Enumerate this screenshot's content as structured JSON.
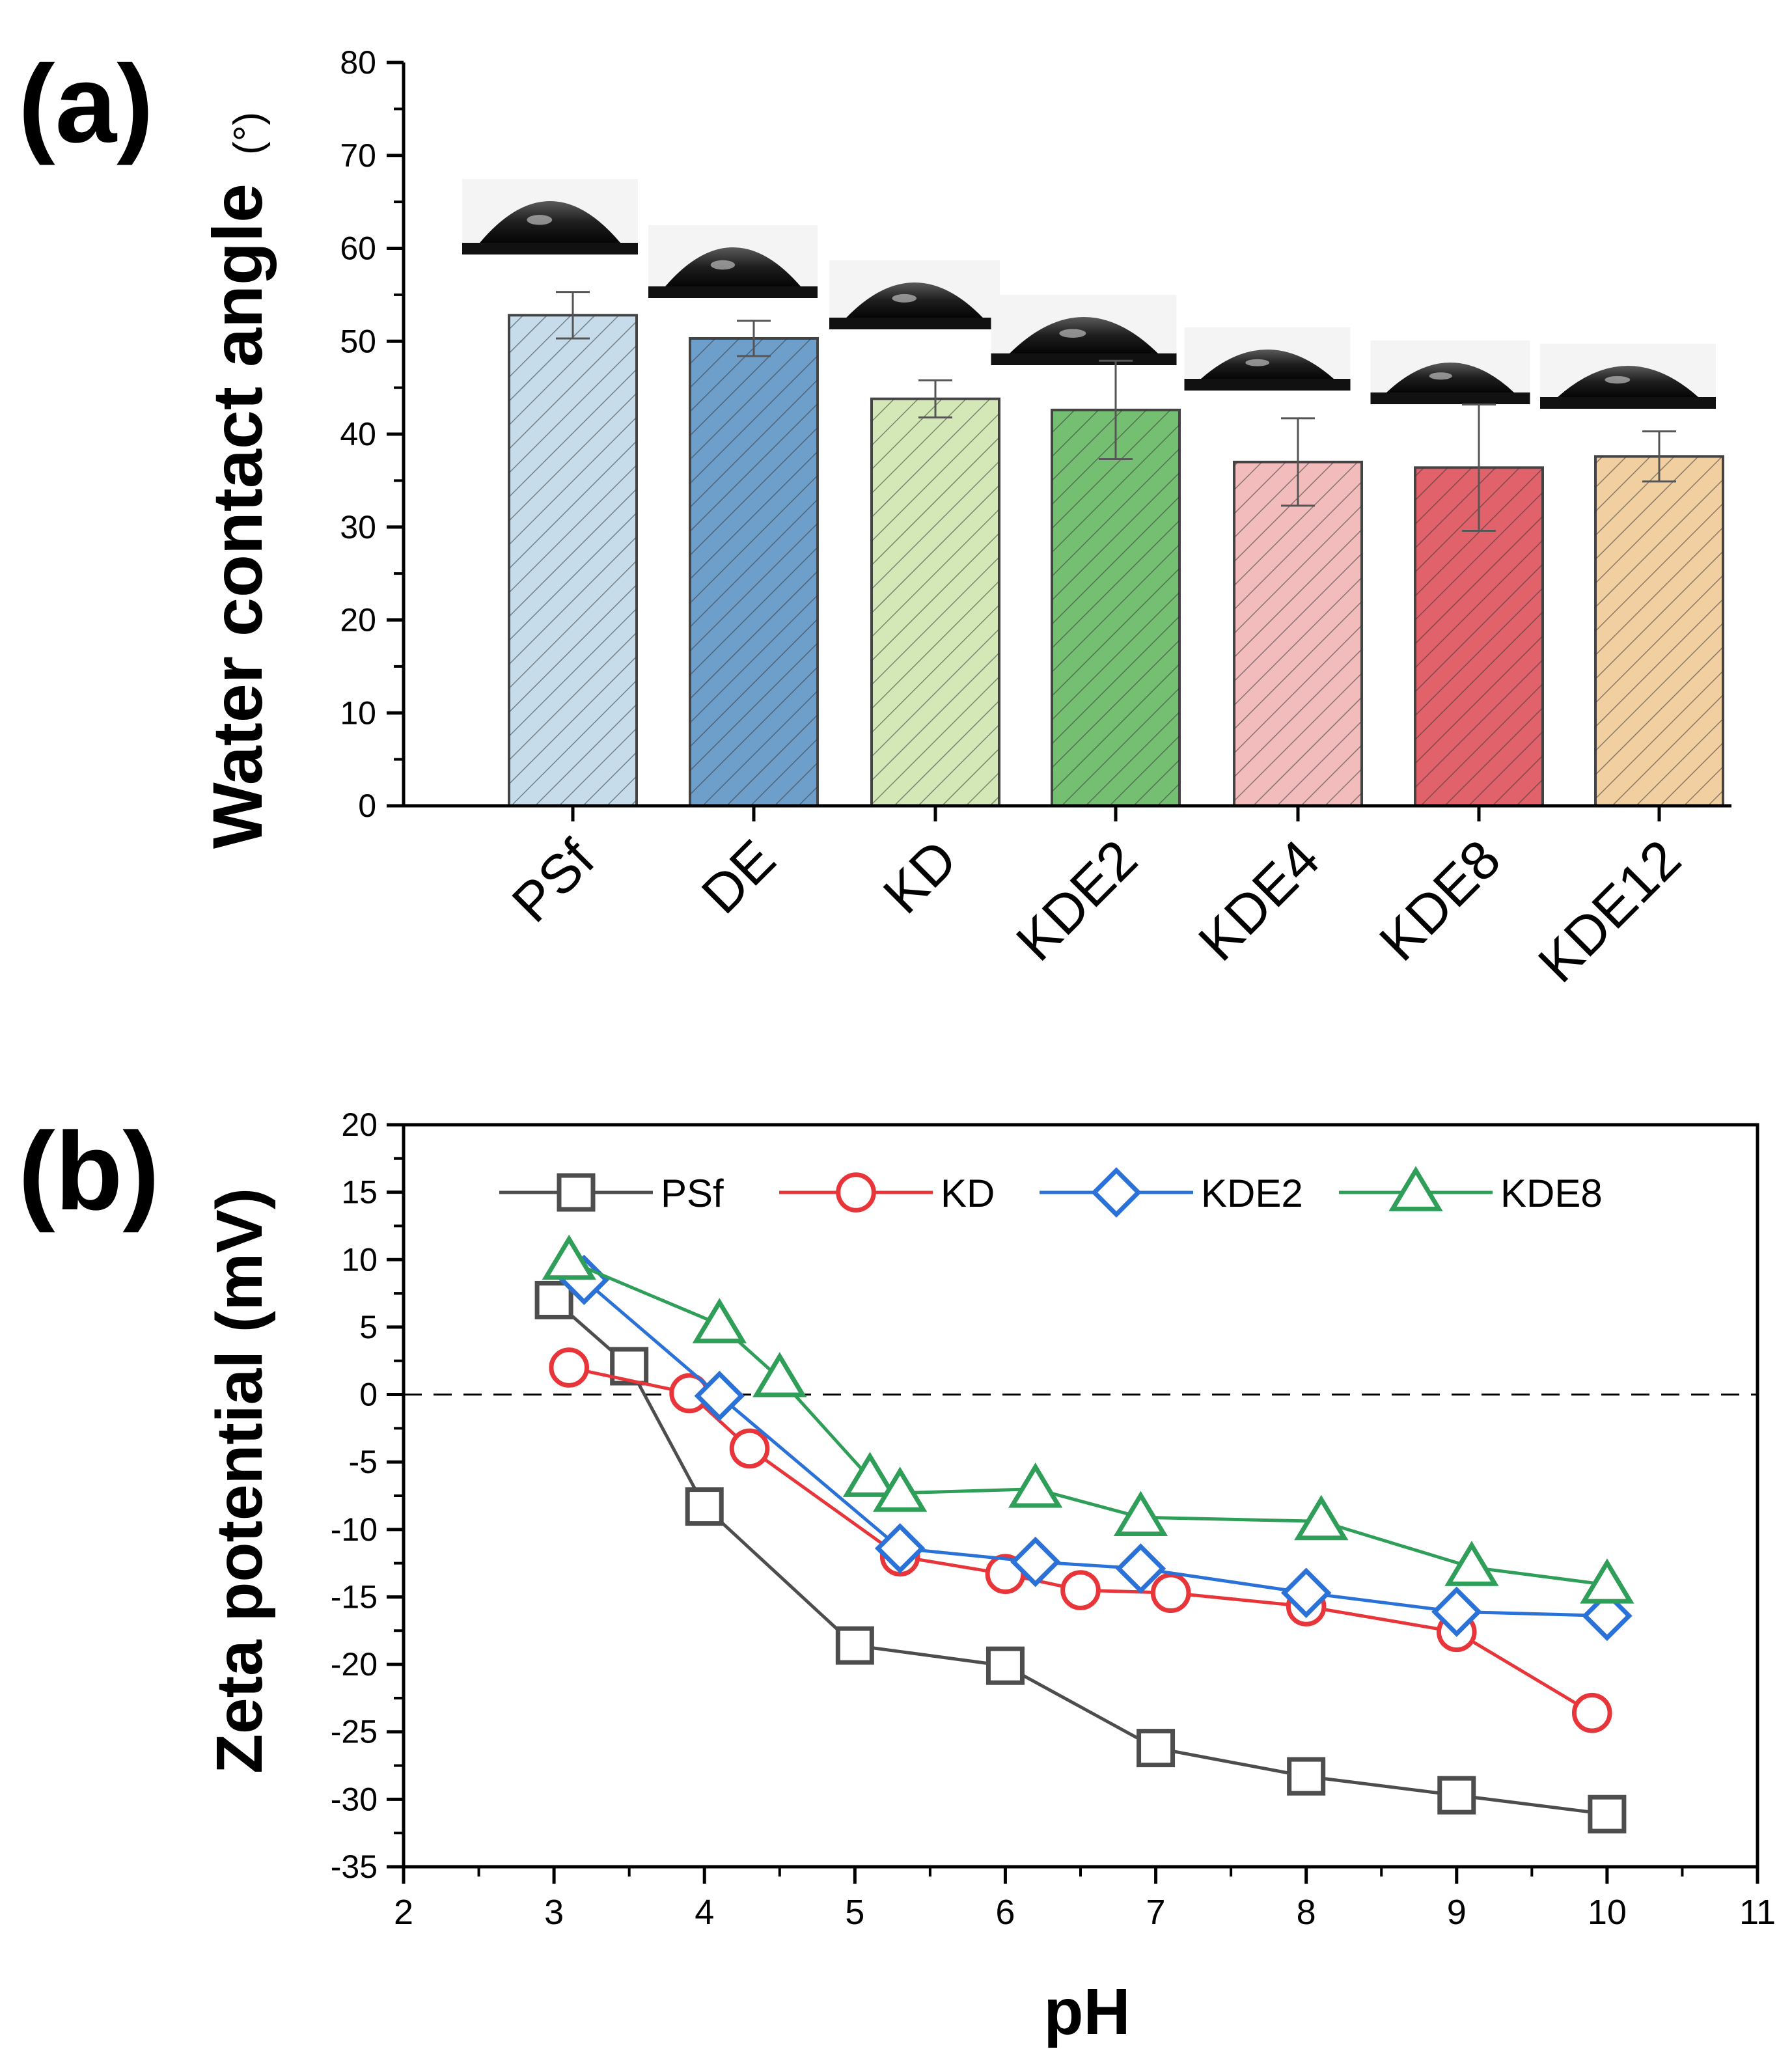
{
  "chart_data": [
    {
      "panel_label": "(a)",
      "type": "bar",
      "ylabel": "Water contact angle",
      "ylabel_unit": "(°)",
      "xlabel": "",
      "ylim": [
        0,
        80
      ],
      "yticks": [
        0,
        10,
        20,
        30,
        40,
        50,
        60,
        70,
        80
      ],
      "categories": [
        "PSf",
        "DE",
        "KD",
        "KDE2",
        "KDE4",
        "KDE8",
        "KDE12"
      ],
      "values": [
        52.8,
        50.3,
        43.8,
        42.6,
        37.0,
        36.4,
        37.6
      ],
      "errors": [
        2.5,
        1.9,
        2.0,
        5.3,
        4.7,
        6.8,
        2.7
      ],
      "colors": [
        "#c6dcea",
        "#6e9fcb",
        "#d3e8b6",
        "#75bf72",
        "#f2bcbc",
        "#e1626b",
        "#f2cfa0"
      ],
      "grid": false,
      "annotations": "water droplet photographs above each bar"
    },
    {
      "panel_label": "(b)",
      "type": "line",
      "xlabel": "pH",
      "ylabel": "Zeta potential (mV)",
      "xlim": [
        2,
        11
      ],
      "ylim": [
        -35,
        20
      ],
      "xticks": [
        2,
        3,
        4,
        5,
        6,
        7,
        8,
        9,
        10,
        11
      ],
      "yticks": [
        20,
        15,
        10,
        5,
        0,
        -5,
        -10,
        -15,
        -20,
        -25,
        -30,
        -35
      ],
      "grid": false,
      "legend_position": "top",
      "reference_line": {
        "y": 0,
        "style": "dashed"
      },
      "series": [
        {
          "name": "PSf",
          "color": "#4d4d4d",
          "marker": "square",
          "x": [
            3.0,
            3.5,
            4.0,
            5.0,
            6.0,
            7.0,
            8.0,
            9.0,
            10.0
          ],
          "y": [
            7.0,
            2.1,
            -8.3,
            -18.6,
            -20.1,
            -26.2,
            -28.3,
            -29.7,
            -31.1
          ]
        },
        {
          "name": "KD",
          "color": "#e8353a",
          "marker": "circle",
          "x": [
            3.1,
            3.9,
            4.3,
            5.3,
            6.0,
            6.5,
            7.1,
            8.0,
            9.0,
            9.9
          ],
          "y": [
            2.0,
            0.1,
            -4.0,
            -12.0,
            -13.3,
            -14.5,
            -14.7,
            -15.7,
            -17.6,
            -23.6
          ]
        },
        {
          "name": "KDE2",
          "color": "#2b72d8",
          "marker": "diamond",
          "x": [
            3.2,
            4.1,
            5.3,
            6.2,
            6.9,
            8.0,
            9.0,
            10.0
          ],
          "y": [
            8.5,
            -0.1,
            -11.4,
            -12.4,
            -12.9,
            -14.7,
            -16.1,
            -16.4
          ]
        },
        {
          "name": "KDE8",
          "color": "#2f9e58",
          "marker": "triangle",
          "x": [
            3.1,
            4.1,
            4.5,
            5.1,
            5.3,
            6.2,
            6.9,
            8.1,
            9.1,
            10.0
          ],
          "y": [
            9.9,
            5.2,
            1.2,
            -6.2,
            -7.3,
            -7.0,
            -9.1,
            -9.4,
            -12.8,
            -14.1
          ]
        }
      ]
    }
  ]
}
